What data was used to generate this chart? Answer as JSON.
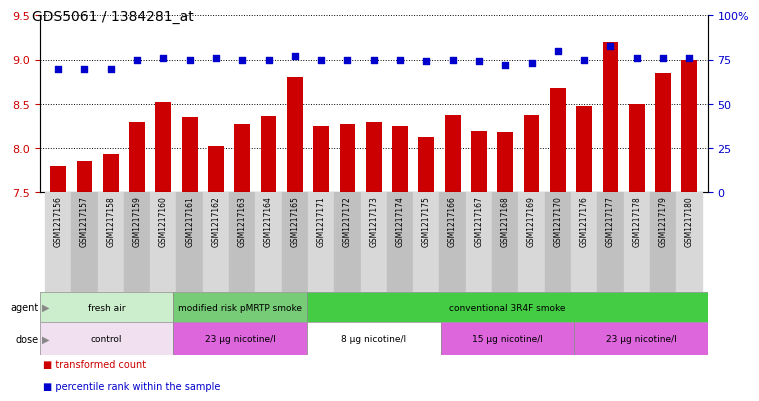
{
  "title": "GDS5061 / 1384281_at",
  "samples": [
    "GSM1217156",
    "GSM1217157",
    "GSM1217158",
    "GSM1217159",
    "GSM1217160",
    "GSM1217161",
    "GSM1217162",
    "GSM1217163",
    "GSM1217164",
    "GSM1217165",
    "GSM1217171",
    "GSM1217172",
    "GSM1217173",
    "GSM1217174",
    "GSM1217175",
    "GSM1217166",
    "GSM1217167",
    "GSM1217168",
    "GSM1217169",
    "GSM1217170",
    "GSM1217176",
    "GSM1217177",
    "GSM1217178",
    "GSM1217179",
    "GSM1217180"
  ],
  "transformed_count": [
    7.8,
    7.85,
    7.93,
    8.3,
    8.52,
    8.35,
    8.02,
    8.27,
    8.36,
    8.8,
    8.25,
    8.27,
    8.3,
    8.25,
    8.13,
    8.38,
    8.2,
    8.18,
    8.38,
    8.68,
    8.48,
    9.2,
    8.5,
    8.85,
    9.0
  ],
  "percentile_rank": [
    70,
    70,
    70,
    75,
    76,
    75,
    76,
    75,
    75,
    77,
    75,
    75,
    75,
    75,
    74,
    75,
    74,
    72,
    73,
    80,
    75,
    83,
    76,
    76,
    76
  ],
  "ylim_left": [
    7.5,
    9.5
  ],
  "ylim_right": [
    0,
    100
  ],
  "bar_color": "#CC0000",
  "dot_color": "#0000CC",
  "yticks_left": [
    7.5,
    8.0,
    8.5,
    9.0,
    9.5
  ],
  "yticks_right": [
    0,
    25,
    50,
    75,
    100
  ],
  "agent_groups": [
    {
      "label": "fresh air",
      "start": 0,
      "end": 5,
      "color": "#CCEECC"
    },
    {
      "label": "modified risk pMRTP smoke",
      "start": 5,
      "end": 10,
      "color": "#77CC77"
    },
    {
      "label": "conventional 3R4F smoke",
      "start": 10,
      "end": 25,
      "color": "#44CC44"
    }
  ],
  "dose_groups": [
    {
      "label": "control",
      "start": 0,
      "end": 5,
      "color": "#F0E0F0"
    },
    {
      "label": "23 μg nicotine/l",
      "start": 5,
      "end": 10,
      "color": "#DD66DD"
    },
    {
      "label": "8 μg nicotine/l",
      "start": 10,
      "end": 15,
      "color": "#FFFFFF"
    },
    {
      "label": "15 μg nicotine/l",
      "start": 15,
      "end": 20,
      "color": "#DD66DD"
    },
    {
      "label": "23 μg nicotine/l",
      "start": 20,
      "end": 25,
      "color": "#DD66DD"
    }
  ],
  "legend_items": [
    {
      "label": "transformed count",
      "color": "#CC0000"
    },
    {
      "label": "percentile rank within the sample",
      "color": "#0000CC"
    }
  ],
  "background_color": "#ffffff",
  "tick_colors": [
    "#D8D8D8",
    "#C0C0C0"
  ]
}
